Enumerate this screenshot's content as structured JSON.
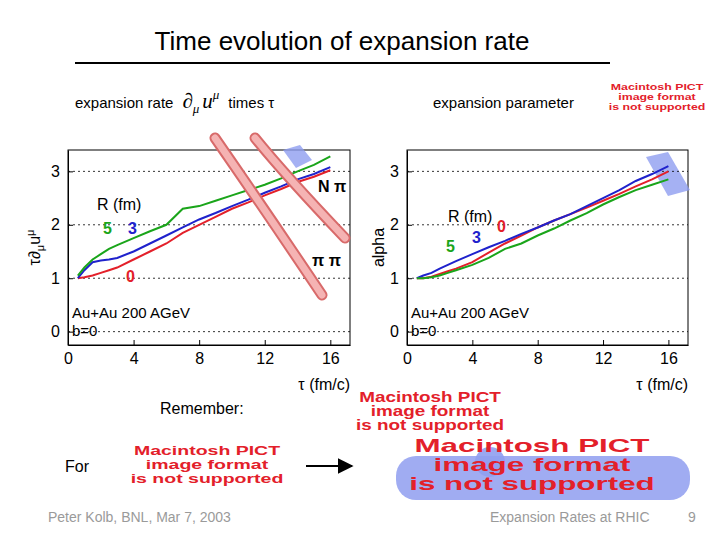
{
  "title": "Time evolution of expansion rate",
  "chart_data": [
    {
      "type": "line",
      "title": [
        "expansion rate",
        "∂",
        "μ",
        "u",
        "μ",
        "times τ"
      ],
      "y_label": [
        "τ∂",
        "μ",
        "u",
        "μ"
      ],
      "x_label": "τ (fm/c)",
      "x": [
        0.6,
        1,
        1.5,
        2,
        2.5,
        3,
        4,
        5,
        6,
        7,
        8,
        9,
        10,
        11,
        12,
        13,
        14,
        15,
        16
      ],
      "series": [
        {
          "name": "0",
          "color": "#e3202a",
          "values": [
            1.0,
            1.02,
            1.05,
            1.1,
            1.15,
            1.2,
            1.35,
            1.5,
            1.65,
            1.85,
            2.0,
            2.15,
            2.3,
            2.42,
            2.55,
            2.67,
            2.8,
            2.9,
            3.02
          ]
        },
        {
          "name": "3",
          "color": "#1f22cc",
          "values": [
            1.0,
            1.15,
            1.3,
            1.33,
            1.35,
            1.38,
            1.5,
            1.65,
            1.8,
            1.95,
            2.1,
            2.22,
            2.35,
            2.47,
            2.6,
            2.72,
            2.85,
            2.95,
            3.08
          ]
        },
        {
          "name": "5",
          "color": "#1aa51a",
          "values": [
            1.05,
            1.2,
            1.35,
            1.45,
            1.55,
            1.62,
            1.75,
            1.88,
            2.0,
            2.3,
            2.35,
            2.45,
            2.55,
            2.65,
            2.75,
            2.87,
            3.0,
            3.12,
            3.28
          ]
        }
      ],
      "xlim": [
        0,
        17.2
      ],
      "ylim": [
        -0.25,
        3.4
      ],
      "xticks": [
        0,
        4,
        8,
        12,
        16
      ],
      "yticks": [
        0,
        1,
        2,
        3
      ],
      "grid": true,
      "legend": "left",
      "legend_title": "R (fm)",
      "annotations": [
        "Au+Au 200 AGeV",
        "b=0",
        "N π",
        "π π"
      ]
    },
    {
      "type": "line",
      "title": [
        "expansion parameter"
      ],
      "y_label": [
        "alpha"
      ],
      "x_label": "τ (fm/c)",
      "x": [
        0.6,
        1,
        1.5,
        2,
        2.5,
        3,
        4,
        5,
        6,
        7,
        8,
        9,
        10,
        11,
        12,
        13,
        14,
        15,
        16
      ],
      "series": [
        {
          "name": "0",
          "color": "#e3202a",
          "values": [
            1.0,
            1.0,
            1.03,
            1.08,
            1.13,
            1.18,
            1.3,
            1.48,
            1.65,
            1.8,
            1.95,
            2.08,
            2.2,
            2.32,
            2.45,
            2.58,
            2.72,
            2.85,
            3.0
          ]
        },
        {
          "name": "3",
          "color": "#1f22cc",
          "values": [
            1.0,
            1.05,
            1.1,
            1.18,
            1.25,
            1.32,
            1.45,
            1.58,
            1.7,
            1.83,
            1.95,
            2.08,
            2.2,
            2.35,
            2.5,
            2.65,
            2.82,
            2.95,
            3.1
          ]
        },
        {
          "name": "5",
          "color": "#1aa51a",
          "values": [
            1.0,
            1.0,
            1.02,
            1.05,
            1.1,
            1.15,
            1.25,
            1.38,
            1.55,
            1.65,
            1.8,
            1.93,
            2.08,
            2.22,
            2.38,
            2.52,
            2.65,
            2.75,
            2.85
          ]
        }
      ],
      "xlim": [
        0,
        17.2
      ],
      "ylim": [
        -0.25,
        3.4
      ],
      "xticks": [
        0,
        4,
        8,
        12,
        16
      ],
      "yticks": [
        0,
        1,
        2,
        3
      ],
      "grid": true,
      "legend": "left",
      "legend_title": "R (fm)",
      "annotations": [
        "Au+Au 200 AGeV",
        "b=0"
      ]
    }
  ],
  "placeholders": [
    {
      "lines": [
        "Macintosh PICT",
        "image format",
        "is not supported"
      ]
    },
    {
      "lines": [
        "Macintosh PICT",
        "image format",
        "is not supported"
      ]
    },
    {
      "lines": [
        "Macintosh PICT",
        "image format",
        "is not supported"
      ]
    },
    {
      "lines": [
        "Macintosh PICT",
        "image format",
        "is not supported"
      ]
    }
  ],
  "text": {
    "remember": "Remember:",
    "for": "For"
  },
  "footer": {
    "author": "Peter Kolb, BNL, Mar 7, 2003",
    "topic": "Expansion Rates at RHIC",
    "page": 9
  }
}
